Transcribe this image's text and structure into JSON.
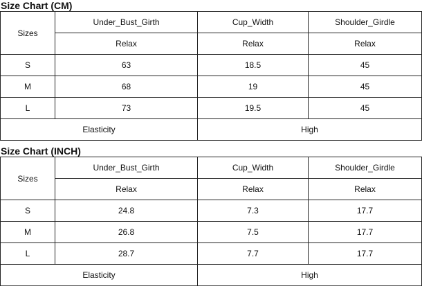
{
  "tables": [
    {
      "title": "Size Chart (CM)",
      "sizes_label": "Sizes",
      "headers": [
        "Under_Bust_Girth",
        "Cup_Width",
        "Shoulder_Girdle"
      ],
      "subheaders": [
        "Relax",
        "Relax",
        "Relax"
      ],
      "rows": [
        {
          "size": "S",
          "values": [
            "63",
            "18.5",
            "45"
          ]
        },
        {
          "size": "M",
          "values": [
            "68",
            "19",
            "45"
          ]
        },
        {
          "size": "L",
          "values": [
            "73",
            "19.5",
            "45"
          ]
        }
      ],
      "footer": {
        "label": "Elasticity",
        "value": "High"
      }
    },
    {
      "title": "Size Chart (INCH)",
      "sizes_label": "Sizes",
      "headers": [
        "Under_Bust_Girth",
        "Cup_Width",
        "Shoulder_Girdle"
      ],
      "subheaders": [
        "Relax",
        "Relax",
        "Relax"
      ],
      "rows": [
        {
          "size": "S",
          "values": [
            "24.8",
            "7.3",
            "17.7"
          ]
        },
        {
          "size": "M",
          "values": [
            "26.8",
            "7.5",
            "17.7"
          ]
        },
        {
          "size": "L",
          "values": [
            "28.7",
            "7.7",
            "17.7"
          ]
        }
      ],
      "footer": {
        "label": "Elasticity",
        "value": "High"
      }
    }
  ]
}
